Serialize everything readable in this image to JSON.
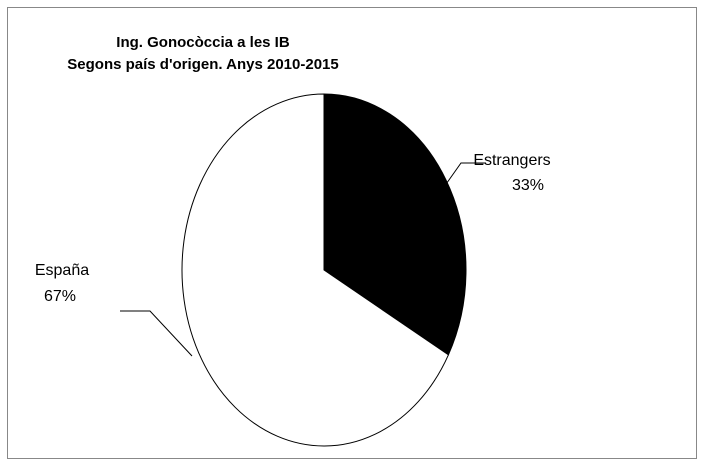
{
  "chart_data": {
    "type": "pie",
    "title": "Ing. Gonocòccia a les IB",
    "subtitle": "Segons país d'origen. Anys 2010-2015",
    "slices": [
      {
        "name": "Estrangers",
        "value": 33,
        "label": "33%",
        "color": "#000000"
      },
      {
        "name": "España",
        "value": 67,
        "label": "67%",
        "color": "#ffffff"
      }
    ],
    "legend": "none"
  }
}
